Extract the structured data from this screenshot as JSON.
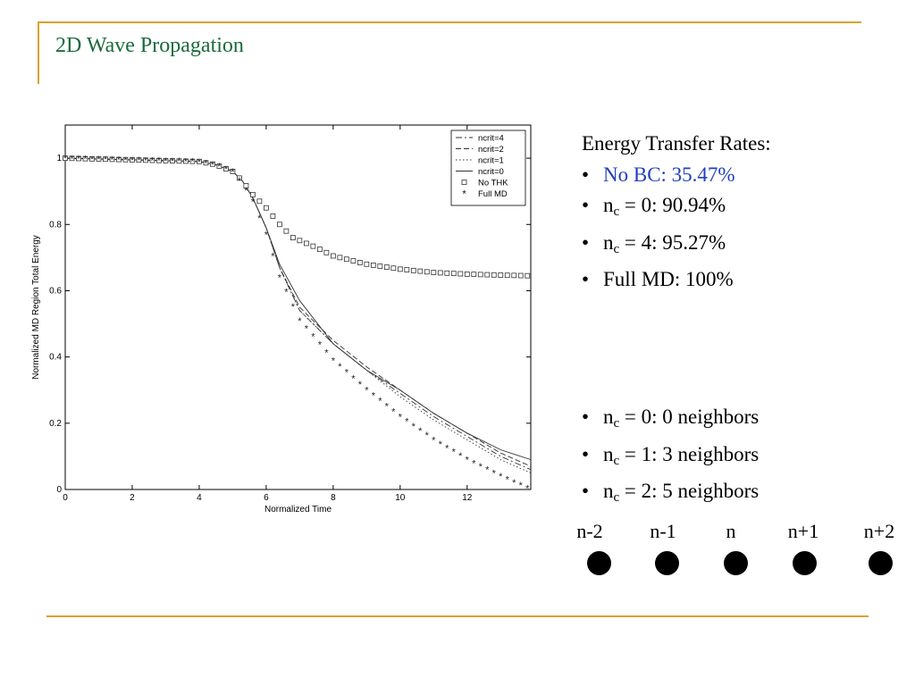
{
  "slide": {
    "title": "2D Wave Propagation"
  },
  "rates": {
    "heading": "Energy Transfer Rates:",
    "items": [
      {
        "label": "No BC:  35.47%",
        "blue": true
      },
      {
        "pre": "n",
        "sub": "c",
        "post": " = 0:  90.94%"
      },
      {
        "pre": "n",
        "sub": "c",
        "post": " = 4:  95.27%"
      },
      {
        "label": "Full MD:  100%"
      }
    ]
  },
  "neighbors": {
    "items": [
      {
        "pre": "n",
        "sub": "c",
        "post": " = 0:  0 neighbors"
      },
      {
        "pre": "n",
        "sub": "c",
        "post": " = 1:  3 neighbors"
      },
      {
        "pre": "n",
        "sub": "c",
        "post": " = 2:  5 neighbors"
      }
    ]
  },
  "nodes": {
    "labels": [
      "n-2",
      "n-1",
      "n",
      "n+1",
      "n+2"
    ]
  },
  "colors": {
    "rule": "#d9a22e",
    "title": "#1a6b3c",
    "highlight": "#1f3fbf"
  },
  "chart_data": {
    "type": "line",
    "xlabel": "Normalized Time",
    "ylabel": "Normalized MD Region Total Energy",
    "xlim": [
      0,
      13.9
    ],
    "ylim": [
      0,
      1.1
    ],
    "xticks": [
      0,
      2,
      4,
      6,
      8,
      10,
      12
    ],
    "yticks": [
      0,
      0.2,
      0.4,
      0.6,
      0.8,
      1
    ],
    "grid": false,
    "legend_position": "top-right",
    "series": [
      {
        "name": "ncrit=4",
        "style": "dashdot",
        "x": [
          0,
          4,
          4.5,
          5,
          5.3,
          5.6,
          6.0,
          6.4,
          7,
          8,
          9,
          10,
          11,
          12,
          13,
          13.9
        ],
        "y": [
          1.0,
          0.99,
          0.98,
          0.96,
          0.93,
          0.88,
          0.79,
          0.67,
          0.54,
          0.44,
          0.36,
          0.29,
          0.22,
          0.16,
          0.1,
          0.06
        ]
      },
      {
        "name": "ncrit=2",
        "style": "dashed",
        "x": [
          0,
          4,
          4.5,
          5,
          5.3,
          5.6,
          6.0,
          6.4,
          7,
          8,
          9,
          10,
          11,
          12,
          13,
          13.9
        ],
        "y": [
          1.0,
          0.99,
          0.98,
          0.96,
          0.93,
          0.88,
          0.79,
          0.67,
          0.55,
          0.45,
          0.37,
          0.3,
          0.23,
          0.17,
          0.11,
          0.07
        ]
      },
      {
        "name": "ncrit=1",
        "style": "dotted",
        "x": [
          0,
          4,
          4.5,
          5,
          5.3,
          5.6,
          6.0,
          6.4,
          7,
          8,
          9,
          10,
          11,
          12,
          13,
          13.9
        ],
        "y": [
          1.0,
          0.99,
          0.98,
          0.96,
          0.93,
          0.88,
          0.79,
          0.67,
          0.54,
          0.44,
          0.36,
          0.28,
          0.21,
          0.15,
          0.09,
          0.05
        ]
      },
      {
        "name": "ncrit=0",
        "style": "solid",
        "x": [
          0,
          4,
          4.5,
          5,
          5.3,
          5.6,
          6.0,
          6.4,
          7,
          8,
          9,
          10,
          11,
          12,
          13,
          13.9
        ],
        "y": [
          1.0,
          0.99,
          0.98,
          0.96,
          0.93,
          0.88,
          0.79,
          0.68,
          0.57,
          0.44,
          0.36,
          0.3,
          0.23,
          0.17,
          0.12,
          0.09
        ]
      },
      {
        "name": "No THK",
        "style": "square-markers",
        "x": [
          0,
          4,
          4.5,
          5,
          5.3,
          5.6,
          6.0,
          6.4,
          6.8,
          7.5,
          8,
          9,
          10,
          11,
          12,
          13,
          13.9
        ],
        "y": [
          1.0,
          0.99,
          0.98,
          0.96,
          0.93,
          0.89,
          0.85,
          0.8,
          0.76,
          0.73,
          0.705,
          0.68,
          0.665,
          0.655,
          0.65,
          0.647,
          0.645
        ]
      },
      {
        "name": "Full MD",
        "style": "star-markers",
        "x": [
          0,
          4,
          4.5,
          5,
          5.3,
          5.6,
          6.0,
          6.4,
          7,
          8,
          9,
          10,
          11,
          12,
          13,
          13.9
        ],
        "y": [
          1.0,
          0.99,
          0.98,
          0.96,
          0.92,
          0.87,
          0.77,
          0.64,
          0.51,
          0.39,
          0.3,
          0.22,
          0.15,
          0.09,
          0.04,
          0.0
        ]
      }
    ]
  }
}
